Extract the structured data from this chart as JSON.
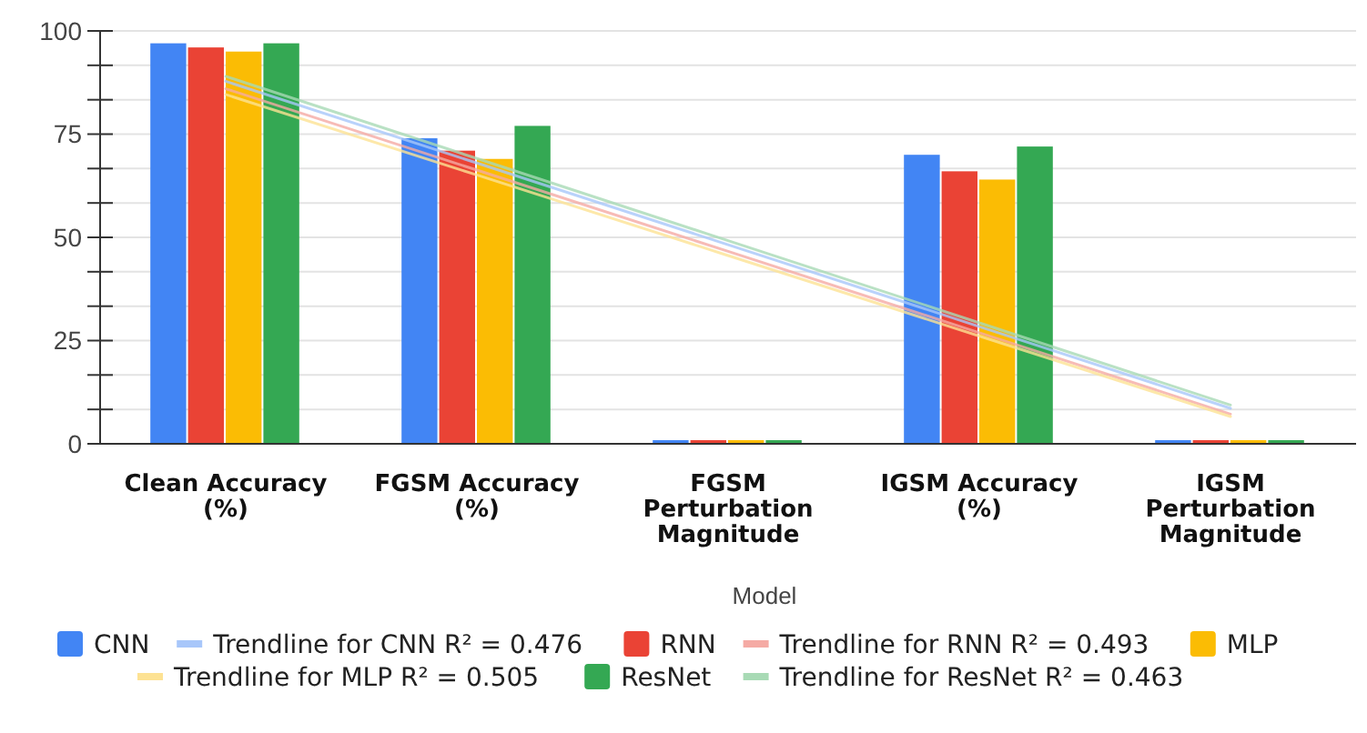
{
  "chart_data": {
    "type": "bar",
    "xlabel": "Model",
    "categories": [
      "Clean Accuracy (%)",
      "FGSM Accuracy (%)",
      "FGSM Perturbation Magnitude",
      "IGSM Accuracy (%)",
      "IGSM Perturbation Magnitude"
    ],
    "series": [
      {
        "name": "CNN",
        "color": "#4285f4",
        "values": [
          97,
          74,
          0,
          70,
          0
        ]
      },
      {
        "name": "Trendline for CNN R² = 0.476",
        "type": "line",
        "color": "#a8c7fa",
        "values": [
          87.8,
          68,
          48.2,
          28.4,
          8.6
        ]
      },
      {
        "name": "RNN",
        "color": "#ea4335",
        "values": [
          96,
          71,
          0,
          66,
          0
        ]
      },
      {
        "name": "Trendline for RNN R² = 0.493",
        "type": "line",
        "color": "#f5aaa4",
        "values": [
          86,
          66.3,
          46.6,
          26.9,
          7.2
        ]
      },
      {
        "name": "MLP",
        "color": "#fbbc04",
        "values": [
          95,
          69,
          0,
          64,
          0
        ]
      },
      {
        "name": "Trendline for MLP R² = 0.505",
        "type": "line",
        "color": "#fde293",
        "values": [
          84.6,
          65.1,
          45.6,
          26.1,
          6.6
        ]
      },
      {
        "name": "ResNet",
        "color": "#34a853",
        "values": [
          97,
          77,
          0,
          72,
          0
        ]
      },
      {
        "name": "Trendline for ResNet R² = 0.463",
        "type": "line",
        "color": "#a8dab5",
        "values": [
          89,
          69.1,
          49.2,
          29.3,
          9.4
        ]
      }
    ],
    "ylim": [
      0,
      100
    ],
    "yticks": [
      0,
      {
        "value": 8.33,
        "label": null
      },
      {
        "value": 16.67,
        "label": null
      },
      25,
      {
        "value": 33.33,
        "label": null
      },
      {
        "value": 41.67,
        "label": null
      },
      50,
      {
        "value": 58.33,
        "label": null
      },
      {
        "value": 66.67,
        "label": null
      },
      75,
      {
        "value": 83.33,
        "label": null
      },
      {
        "value": 91.67,
        "label": null
      },
      100
    ],
    "grid": "y",
    "legend": "bottom"
  }
}
